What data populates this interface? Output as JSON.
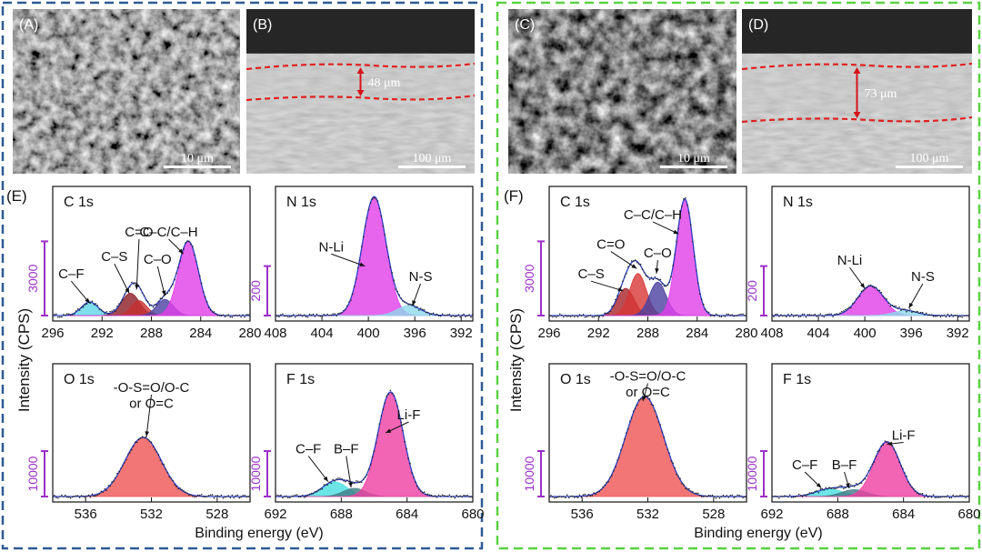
{
  "colors": {
    "left_frame": "#2e5a94",
    "right_frame": "#5ad143",
    "scale_bar": "#9b30c8",
    "magenta": "#e13ee9",
    "blue_env": "#2b3fc2",
    "red_dash": "#e02020",
    "arrow": "#d4141a"
  },
  "sem": [
    {
      "panel": "(A)",
      "scale": "10 μm",
      "tone": "dense"
    },
    {
      "panel": "(B)",
      "scale": "100 μm",
      "thickness": "48 μm",
      "tone": "cross"
    },
    {
      "panel": "(C)",
      "scale": "10 μm",
      "tone": "porous"
    },
    {
      "panel": "(D)",
      "scale": "100 μm",
      "thickness": "73 μm",
      "tone": "cross"
    }
  ],
  "group_labels": [
    "(E)",
    "(F)"
  ],
  "ylabel": "Intensity (CPS)",
  "xlabel": "Binding energy (eV)",
  "chart_data": [
    {
      "type": "area",
      "group": "E",
      "title": "C 1s",
      "xlim": [
        296,
        280
      ],
      "xticks": [
        296,
        292,
        288,
        284,
        280
      ],
      "ylim": [
        0,
        5000
      ],
      "scalebar": {
        "label": "3000",
        "value": 3000
      },
      "components": [
        {
          "label": "C–F",
          "center": 293.0,
          "height": 550,
          "fwhm": 1.6,
          "color": "#5fd6e6"
        },
        {
          "label": "C–S",
          "center": 289.7,
          "height": 900,
          "fwhm": 1.7,
          "color": "#8b1c24"
        },
        {
          "label": "C=O",
          "center": 289.0,
          "height": 600,
          "fwhm": 1.5,
          "color": "#c73131"
        },
        {
          "label": "C–O",
          "center": 286.9,
          "height": 650,
          "fwhm": 1.6,
          "color": "#4a3fa0"
        },
        {
          "label": "C–C/C–H",
          "center": 285.0,
          "height": 3000,
          "fwhm": 1.9,
          "color": "#e13ee9"
        }
      ],
      "annotations": [
        {
          "text": "C–F",
          "tx": 294.5,
          "ty": 1500,
          "ax": 293.0,
          "ay": 500
        },
        {
          "text": "C–S",
          "tx": 291.0,
          "ty": 2200,
          "ax": 289.8,
          "ay": 900
        },
        {
          "text": "C=O",
          "tx": 289.0,
          "ty": 3200,
          "ax": 289.2,
          "ay": 1050
        },
        {
          "text": "C–O",
          "tx": 287.5,
          "ty": 2100,
          "ax": 286.9,
          "ay": 800
        },
        {
          "text": "C–C/C–H",
          "tx": 286.6,
          "ty": 3200,
          "ax": 285.4,
          "ay": 2500
        }
      ]
    },
    {
      "type": "area",
      "group": "E",
      "title": "N 1s",
      "xlim": [
        408,
        391
      ],
      "xticks": [
        408,
        404,
        400,
        396,
        392
      ],
      "ylim": [
        0,
        500
      ],
      "scalebar": {
        "label": "200",
        "value": 200
      },
      "components": [
        {
          "label": "N-Li",
          "center": 399.5,
          "height": 480,
          "fwhm": 2.4,
          "color": "#e13ee9"
        },
        {
          "label": "N-S",
          "center": 396.5,
          "height": 40,
          "fwhm": 2.4,
          "color": "#8fd8ea"
        }
      ],
      "annotations": [
        {
          "text": "N-Li",
          "tx": 403.2,
          "ty": 260,
          "ax": 400.3,
          "ay": 200
        },
        {
          "text": "N-S",
          "tx": 395.5,
          "ty": 140,
          "ax": 396.2,
          "ay": 40
        }
      ]
    },
    {
      "type": "area",
      "group": "E",
      "title": "O 1s",
      "xlim": [
        538,
        526
      ],
      "xticks": [
        536,
        532,
        528
      ],
      "ylim": [
        0,
        28000
      ],
      "scalebar": {
        "label": "10000",
        "value": 10000
      },
      "components": [
        {
          "label": "-O-S=O/O-C or O=C",
          "center": 532.5,
          "height": 13000,
          "fwhm": 2.6,
          "color": "#f05454"
        }
      ],
      "annotations": [
        {
          "text": "-O-S=O/O-C",
          "tx": 532.0,
          "ty": 23000,
          "ax": 532.3,
          "ay": 13200
        },
        {
          "text": "or O=C",
          "tx": 532.0,
          "ty": 19500
        }
      ]
    },
    {
      "type": "area",
      "group": "E",
      "title": "F 1s",
      "xlim": [
        692,
        680
      ],
      "xticks": [
        692,
        688,
        684,
        680
      ],
      "ylim": [
        0,
        28000
      ],
      "scalebar": {
        "label": "10000",
        "value": 10000
      },
      "components": [
        {
          "label": "C–F",
          "center": 688.4,
          "height": 3200,
          "fwhm": 1.8,
          "color": "#48dfe0"
        },
        {
          "label": "B–F",
          "center": 687.2,
          "height": 1800,
          "fwhm": 1.6,
          "color": "#3f7c84"
        },
        {
          "label": "Li-F",
          "center": 685.0,
          "height": 23000,
          "fwhm": 1.8,
          "color": "#ef3fa3"
        }
      ],
      "annotations": [
        {
          "text": "C–F",
          "tx": 690.0,
          "ty": 9500,
          "ax": 688.8,
          "ay": 3300
        },
        {
          "text": "B–F",
          "tx": 687.7,
          "ty": 9500,
          "ax": 687.4,
          "ay": 2000
        },
        {
          "text": "Li-F",
          "tx": 683.9,
          "ty": 17000,
          "ax": 685.3,
          "ay": 14000
        }
      ]
    },
    {
      "type": "area",
      "group": "F",
      "title": "C 1s",
      "xlim": [
        296,
        280
      ],
      "xticks": [
        296,
        292,
        288,
        284,
        280
      ],
      "ylim": [
        0,
        5000
      ],
      "scalebar": {
        "label": "3000",
        "value": 3000
      },
      "components": [
        {
          "label": "C–S",
          "center": 289.8,
          "height": 1100,
          "fwhm": 1.6,
          "color": "#a7232b"
        },
        {
          "label": "C=O",
          "center": 288.8,
          "height": 1700,
          "fwhm": 1.6,
          "color": "#d83636"
        },
        {
          "label": "C–O",
          "center": 287.2,
          "height": 1350,
          "fwhm": 1.6,
          "color": "#4a3fa0"
        },
        {
          "label": "C–C/C–H",
          "center": 285.0,
          "height": 4700,
          "fwhm": 1.6,
          "color": "#e13ee9"
        }
      ],
      "annotations": [
        {
          "text": "C–S",
          "tx": 292.6,
          "ty": 1500,
          "ax": 290.0,
          "ay": 1000
        },
        {
          "text": "C=O",
          "tx": 291.0,
          "ty": 2700,
          "ax": 288.9,
          "ay": 1900
        },
        {
          "text": "C–O",
          "tx": 287.2,
          "ty": 2350,
          "ax": 287.3,
          "ay": 1700
        },
        {
          "text": "C–C/C–H",
          "tx": 287.6,
          "ty": 3900,
          "ax": 285.5,
          "ay": 3300
        }
      ]
    },
    {
      "type": "area",
      "group": "F",
      "title": "N 1s",
      "xlim": [
        408,
        391
      ],
      "xticks": [
        408,
        404,
        400,
        396,
        392
      ],
      "ylim": [
        0,
        500
      ],
      "scalebar": {
        "label": "200",
        "value": 200
      },
      "components": [
        {
          "label": "N-Li",
          "center": 399.5,
          "height": 120,
          "fwhm": 2.6,
          "color": "#e13ee9"
        },
        {
          "label": "N-S",
          "center": 396.5,
          "height": 20,
          "fwhm": 2.4,
          "color": "#8fd8ea"
        }
      ],
      "annotations": [
        {
          "text": "N-Li",
          "tx": 401.3,
          "ty": 205,
          "ax": 400.0,
          "ay": 110
        },
        {
          "text": "N-S",
          "tx": 395.0,
          "ty": 140,
          "ax": 396.2,
          "ay": 30
        }
      ]
    },
    {
      "type": "area",
      "group": "F",
      "title": "O 1s",
      "xlim": [
        538,
        526
      ],
      "xticks": [
        536,
        532,
        528
      ],
      "ylim": [
        0,
        28000
      ],
      "scalebar": {
        "label": "10000",
        "value": 10000
      },
      "components": [
        {
          "label": "-O-S=O/O-C or O=C",
          "center": 532.2,
          "height": 22000,
          "fwhm": 2.7,
          "color": "#f05454"
        }
      ],
      "annotations": [
        {
          "text": "-O-S=O/O-C",
          "tx": 532.0,
          "ty": 25500,
          "ax": 532.3,
          "ay": 21000
        },
        {
          "text": "or O=C",
          "tx": 532.0,
          "ty": 22000
        }
      ]
    },
    {
      "type": "area",
      "group": "F",
      "title": "F 1s",
      "xlim": [
        692,
        680
      ],
      "xticks": [
        692,
        688,
        684,
        680
      ],
      "ylim": [
        0,
        28000
      ],
      "scalebar": {
        "label": "10000",
        "value": 10000
      },
      "components": [
        {
          "label": "C–F",
          "center": 688.5,
          "height": 1600,
          "fwhm": 2.0,
          "color": "#48dfe0"
        },
        {
          "label": "B–F",
          "center": 687.0,
          "height": 1500,
          "fwhm": 1.8,
          "color": "#3f7c84"
        },
        {
          "label": "Li-F",
          "center": 685.0,
          "height": 12000,
          "fwhm": 1.9,
          "color": "#ef3fa3"
        }
      ],
      "annotations": [
        {
          "text": "C–F",
          "tx": 690.0,
          "ty": 6000,
          "ax": 689.0,
          "ay": 1900
        },
        {
          "text": "B–F",
          "tx": 687.6,
          "ty": 6000,
          "ax": 687.3,
          "ay": 1800
        },
        {
          "text": "Li-F",
          "tx": 684.0,
          "ty": 12500,
          "ax": 685.0,
          "ay": 11500
        }
      ]
    }
  ]
}
